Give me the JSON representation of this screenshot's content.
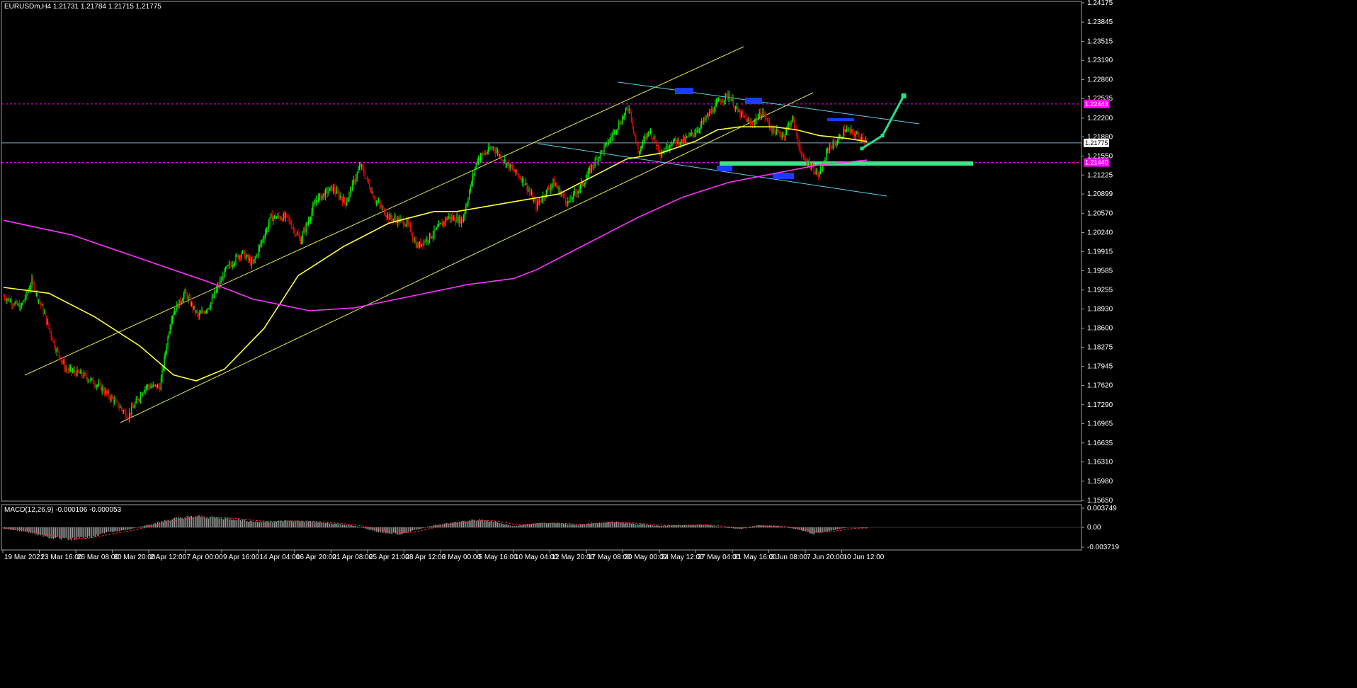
{
  "chart_data": [
    {
      "type": "candlestick",
      "title": "EURUSDm,H4  1.21731 1.21784 1.21715 1.21775",
      "symbol": "EURUSDm",
      "timeframe": "H4",
      "ohlc_current": {
        "open": 1.21731,
        "high": 1.21784,
        "low": 1.21715,
        "close": 1.21775
      },
      "ylim": [
        1.1565,
        1.24175
      ],
      "y_ticks": [
        "1.24175",
        "1.23845",
        "1.23515",
        "1.23190",
        "1.22860",
        "1.22535",
        "1.22200",
        "1.21880",
        "1.21550",
        "1.21225",
        "1.20899",
        "1.20570",
        "1.20240",
        "1.19915",
        "1.19585",
        "1.19255",
        "1.18930",
        "1.18600",
        "1.18275",
        "1.17945",
        "1.17620",
        "1.17290",
        "1.16965",
        "1.16635",
        "1.16310",
        "1.15980",
        "1.15650"
      ],
      "x_ticks": [
        "19 Mar 2021",
        "23 Mar 16:00",
        "26 Mar 08:00",
        "30 Mar 20:00",
        "2 Apr 12:00",
        "7 Apr 00:00",
        "9 Apr 16:00",
        "14 Apr 04:00",
        "16 Apr 20:00",
        "21 Apr 08:00",
        "25 Apr 21:00",
        "28 Apr 12:00",
        "3 May 00:00",
        "5 May 16:00",
        "10 May 04:00",
        "12 May 20:00",
        "17 May 08:00",
        "20 May 00:00",
        "24 May 12:00",
        "27 May 04:00",
        "31 May 16:00",
        "3 Jun 08:00",
        "7 Jun 20:00",
        "10 Jun 12:00"
      ],
      "price_path": [
        [
          0,
          1.1915
        ],
        [
          15,
          1.1895
        ],
        [
          25,
          1.194
        ],
        [
          35,
          1.189
        ],
        [
          45,
          1.183
        ],
        [
          55,
          1.179
        ],
        [
          70,
          1.178
        ],
        [
          85,
          1.176
        ],
        [
          100,
          1.173
        ],
        [
          110,
          1.171
        ],
        [
          125,
          1.176
        ],
        [
          138,
          1.176
        ],
        [
          148,
          1.188
        ],
        [
          160,
          1.192
        ],
        [
          172,
          1.188
        ],
        [
          182,
          1.19
        ],
        [
          196,
          1.196
        ],
        [
          210,
          1.199
        ],
        [
          220,
          1.197
        ],
        [
          236,
          1.205
        ],
        [
          250,
          1.205
        ],
        [
          262,
          1.201
        ],
        [
          276,
          1.208
        ],
        [
          290,
          1.21
        ],
        [
          302,
          1.2075
        ],
        [
          315,
          1.214
        ],
        [
          328,
          1.208
        ],
        [
          340,
          1.205
        ],
        [
          356,
          1.204
        ],
        [
          365,
          1.2
        ],
        [
          378,
          1.202
        ],
        [
          392,
          1.205
        ],
        [
          405,
          1.2045
        ],
        [
          418,
          1.215
        ],
        [
          432,
          1.217
        ],
        [
          445,
          1.214
        ],
        [
          460,
          1.211
        ],
        [
          470,
          1.207
        ],
        [
          485,
          1.211
        ],
        [
          498,
          1.2075
        ],
        [
          512,
          1.211
        ],
        [
          520,
          1.214
        ],
        [
          534,
          1.218
        ],
        [
          546,
          1.222
        ],
        [
          552,
          1.224
        ],
        [
          560,
          1.216
        ],
        [
          570,
          1.22
        ],
        [
          580,
          1.216
        ],
        [
          590,
          1.218
        ],
        [
          600,
          1.218
        ],
        [
          612,
          1.22
        ],
        [
          620,
          1.222
        ],
        [
          632,
          1.225
        ],
        [
          640,
          1.226
        ],
        [
          648,
          1.223
        ],
        [
          660,
          1.221
        ],
        [
          670,
          1.223
        ],
        [
          678,
          1.22
        ],
        [
          688,
          1.219
        ],
        [
          696,
          1.222
        ],
        [
          705,
          1.215
        ],
        [
          712,
          1.214
        ],
        [
          720,
          1.212
        ],
        [
          728,
          1.217
        ],
        [
          736,
          1.218
        ],
        [
          742,
          1.22
        ],
        [
          755,
          1.219
        ],
        [
          762,
          1.218
        ]
      ],
      "indicators": {
        "ma_yellow": [
          [
            0,
            1.193
          ],
          [
            40,
            1.192
          ],
          [
            80,
            1.188
          ],
          [
            120,
            1.183
          ],
          [
            150,
            1.178
          ],
          [
            170,
            1.177
          ],
          [
            195,
            1.179
          ],
          [
            230,
            1.186
          ],
          [
            260,
            1.195
          ],
          [
            300,
            1.2
          ],
          [
            340,
            1.204
          ],
          [
            380,
            1.206
          ],
          [
            400,
            1.206
          ],
          [
            430,
            1.207
          ],
          [
            460,
            1.208
          ],
          [
            490,
            1.209
          ],
          [
            520,
            1.212
          ],
          [
            550,
            1.215
          ],
          [
            580,
            1.216
          ],
          [
            610,
            1.218
          ],
          [
            630,
            1.22
          ],
          [
            650,
            1.2205
          ],
          [
            680,
            1.2205
          ],
          [
            700,
            1.22
          ],
          [
            720,
            1.219
          ],
          [
            745,
            1.2185
          ],
          [
            762,
            1.218
          ]
        ],
        "ma_magenta": [
          [
            0,
            1.2045
          ],
          [
            60,
            1.202
          ],
          [
            120,
            1.198
          ],
          [
            180,
            1.194
          ],
          [
            220,
            1.191
          ],
          [
            270,
            1.189
          ],
          [
            310,
            1.1895
          ],
          [
            360,
            1.1915
          ],
          [
            410,
            1.1935
          ],
          [
            450,
            1.1945
          ],
          [
            470,
            1.196
          ],
          [
            500,
            1.199
          ],
          [
            530,
            1.202
          ],
          [
            560,
            1.205
          ],
          [
            600,
            1.2085
          ],
          [
            640,
            1.211
          ],
          [
            680,
            1.2125
          ],
          [
            720,
            1.214
          ],
          [
            762,
            1.2148
          ]
        ]
      },
      "horizontal_lines": [
        {
          "value": 1.22443,
          "label": "1.22443",
          "style": "dashed",
          "color": "#ff00ff"
        },
        {
          "value": 1.21775,
          "label": "1.21775",
          "style": "solid",
          "color": "#87a9c4"
        },
        {
          "value": 1.2144,
          "label": "1.21440",
          "style": "dashed",
          "color": "#ff00ff"
        }
      ],
      "macd": {
        "title": "MACD(12,26,9) -0.000106 -0.000053",
        "params": [
          12,
          26,
          9
        ],
        "value": -0.000106,
        "signal": -5.3e-05,
        "ylim": [
          -0.003719,
          0.003749
        ],
        "y_ticks": [
          "0.003749",
          "0.00",
          "-0.003719"
        ],
        "hist_path": [
          [
            0,
            -0.0002
          ],
          [
            20,
            -0.0008
          ],
          [
            40,
            -0.0018
          ],
          [
            60,
            -0.0022
          ],
          [
            75,
            -0.0018
          ],
          [
            90,
            -0.001
          ],
          [
            110,
            -0.0004
          ],
          [
            130,
            0.0006
          ],
          [
            150,
            0.0016
          ],
          [
            170,
            0.002
          ],
          [
            200,
            0.0016
          ],
          [
            225,
            0.001
          ],
          [
            250,
            0.0012
          ],
          [
            270,
            0.0011
          ],
          [
            290,
            0.0007
          ],
          [
            310,
            0.0003
          ],
          [
            330,
            -0.0008
          ],
          [
            350,
            -0.0012
          ],
          [
            365,
            -0.0004
          ],
          [
            380,
            0.0004
          ],
          [
            400,
            0.001
          ],
          [
            420,
            0.0014
          ],
          [
            435,
            0.001
          ],
          [
            450,
            0.0002
          ],
          [
            470,
            0.0008
          ],
          [
            490,
            0.0008
          ],
          [
            505,
            0.0004
          ],
          [
            520,
            0.0008
          ],
          [
            540,
            0.001
          ],
          [
            560,
            0.0006
          ],
          [
            580,
            0.0003
          ],
          [
            600,
            0.0004
          ],
          [
            620,
            0.0005
          ],
          [
            635,
            0.0
          ],
          [
            650,
            -0.0003
          ],
          [
            665,
            0.0004
          ],
          [
            680,
            0.0003
          ],
          [
            700,
            -0.0003
          ],
          [
            715,
            -0.0012
          ],
          [
            730,
            -0.0006
          ],
          [
            745,
            0.0
          ],
          [
            762,
            -0.0001
          ]
        ]
      },
      "annotations": {
        "projection_arrow": [
          [
            1217,
            1.2168
          ],
          [
            1246,
            1.219
          ],
          [
            1276,
            1.2258
          ]
        ]
      },
      "colors": {
        "bull": "#00ff00",
        "bear": "#ff0000",
        "ma_fast": "#ffff33",
        "ma_slow": "#ff33ff",
        "channel": "#ffff66",
        "down_channel": "#5fd3e8",
        "support": "#3ee38a",
        "marker": "#1a3cff",
        "arrow": "#22e38a",
        "grid_text": "#ffffff"
      }
    }
  ]
}
